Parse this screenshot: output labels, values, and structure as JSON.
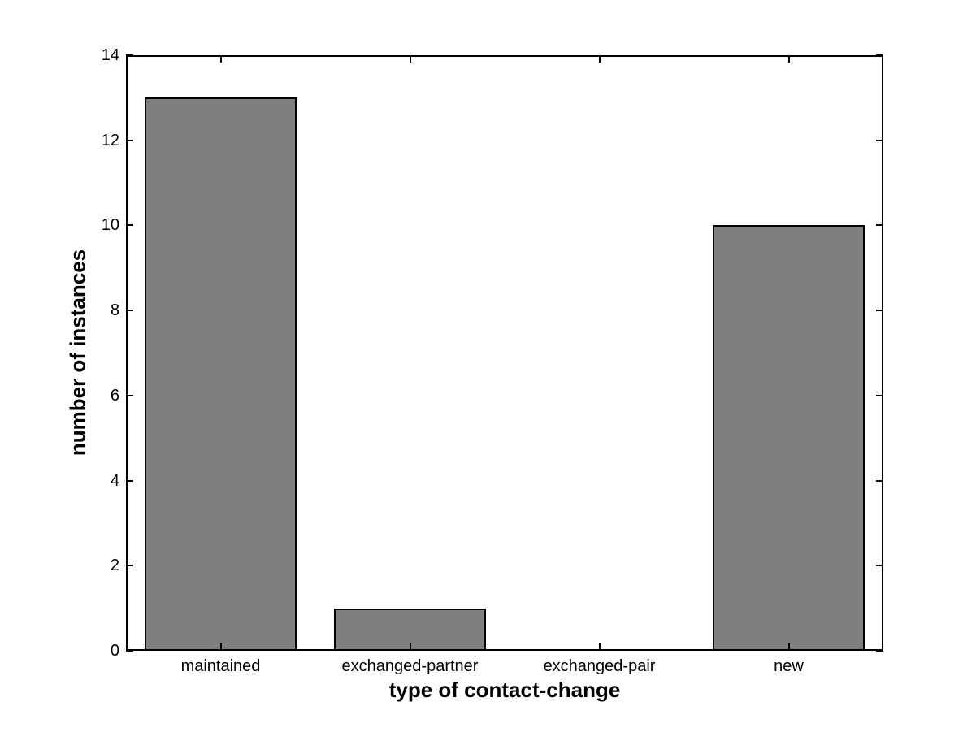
{
  "chart_data": {
    "type": "bar",
    "title": "",
    "xlabel": "type of contact-change",
    "ylabel": "number of instances",
    "categories": [
      "maintained",
      "exchanged-partner",
      "exchanged-pair",
      "new"
    ],
    "values": [
      13,
      1,
      0,
      10
    ],
    "ylim": [
      0,
      14
    ],
    "yticks": [
      0,
      2,
      4,
      6,
      8,
      10,
      12,
      14
    ],
    "bar_width_fraction": 0.8,
    "bar_color": "#7f7f7f",
    "bar_edge_color": "#000000",
    "axis_color": "#000000",
    "background_color": "#ffffff",
    "grid": "off",
    "legend": "none"
  }
}
